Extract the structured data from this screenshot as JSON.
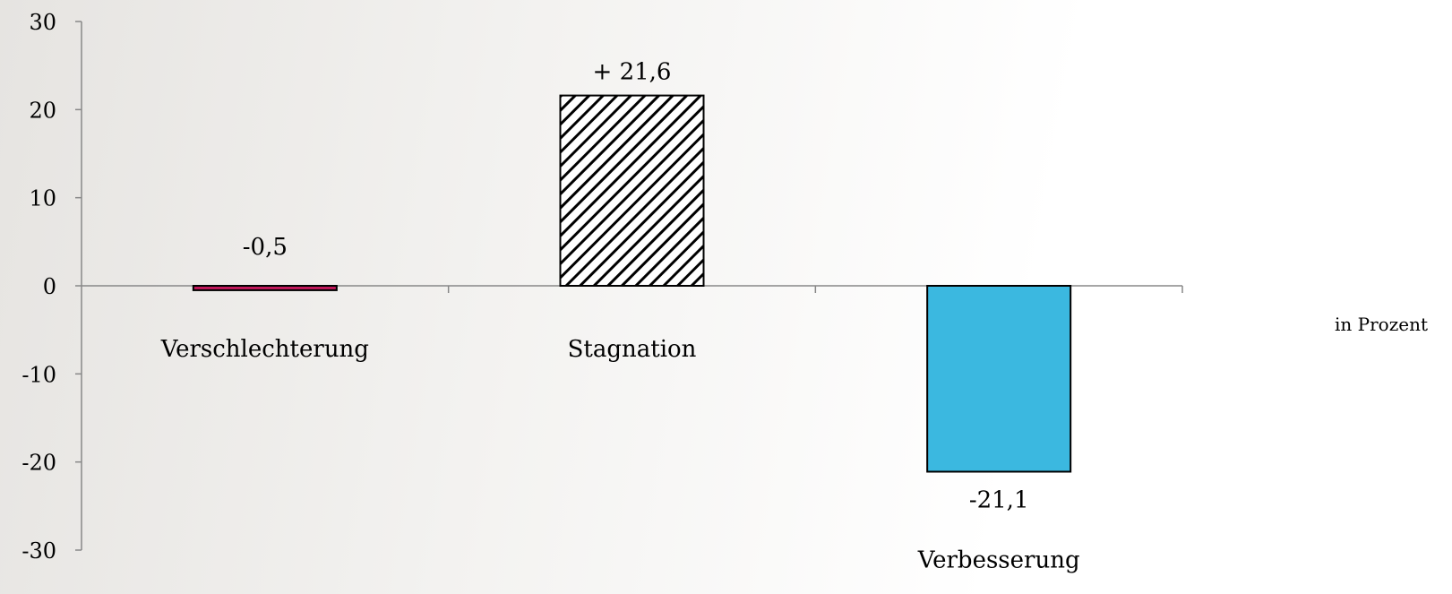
{
  "chart_data": {
    "type": "bar",
    "categories": [
      "Verschlechterung",
      "Stagnation",
      "Verbesserung"
    ],
    "values": [
      -0.5,
      21.6,
      -21.1
    ],
    "data_labels": [
      "-0,5",
      "+ 21,6",
      "-21,1"
    ],
    "ylim": [
      -30,
      30
    ],
    "y_ticks": [
      30,
      20,
      10,
      0,
      -10,
      -20,
      -30
    ],
    "y_tick_labels": [
      "30",
      "20",
      "10",
      "0",
      "-10",
      "-20",
      "-30"
    ],
    "unit_label": "in Prozent",
    "grid": false,
    "bar_styles": [
      {
        "fill": "#c2185b",
        "pattern": "solid"
      },
      {
        "fill": "#ffffff",
        "pattern": "diagonal-hatch"
      },
      {
        "fill": "#3bb8e0",
        "pattern": "solid"
      }
    ]
  }
}
